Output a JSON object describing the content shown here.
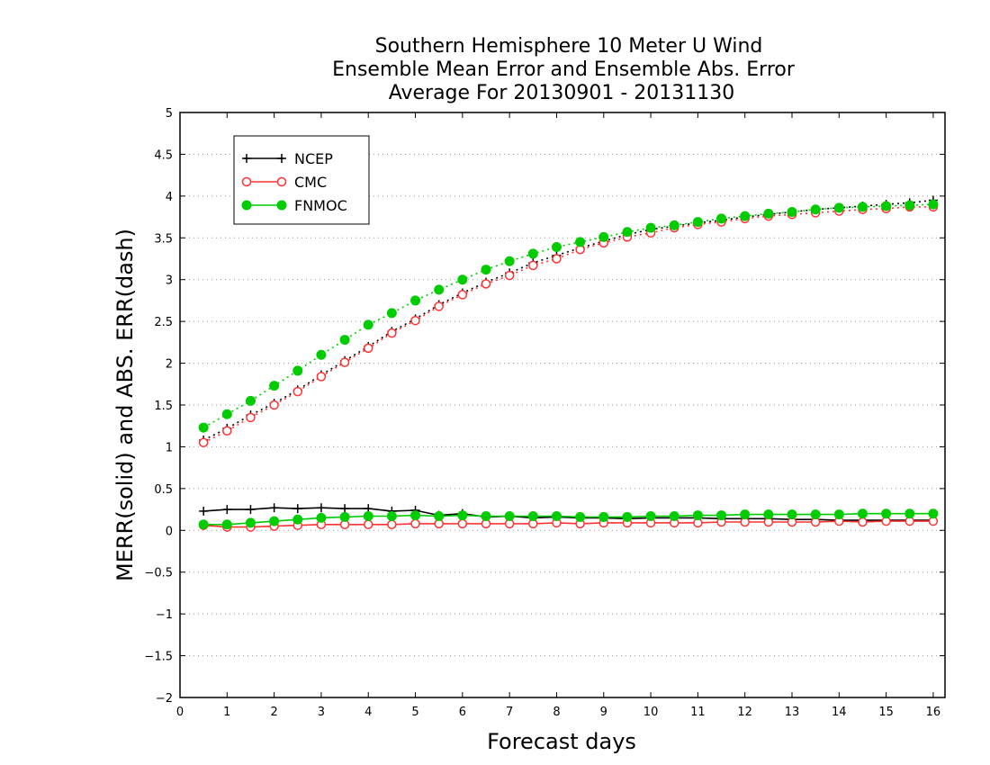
{
  "chart_data": {
    "type": "line",
    "title_lines": [
      "Southern Hemisphere 10 Meter U Wind",
      "Ensemble Mean Error and Ensemble Abs. Error",
      "Average For 20130901 - 20131130"
    ],
    "xlabel": "Forecast days",
    "ylabel": "MERR(solid) and ABS. ERR(dash)",
    "xlim": [
      0,
      16.25
    ],
    "ylim": [
      -2,
      5
    ],
    "xticks": [
      0,
      1,
      2,
      3,
      4,
      5,
      6,
      7,
      8,
      9,
      10,
      11,
      12,
      13,
      14,
      15,
      16
    ],
    "yticks": [
      -2,
      -1.5,
      -1,
      -0.5,
      0,
      0.5,
      1,
      1.5,
      2,
      2.5,
      3,
      3.5,
      4,
      4.5,
      5
    ],
    "grid": "horizontal dotted",
    "legend_position": "top-left",
    "x": [
      0.5,
      1,
      1.5,
      2,
      2.5,
      3,
      3.5,
      4,
      4.5,
      5,
      5.5,
      6,
      6.5,
      7,
      7.5,
      8,
      8.5,
      9,
      9.5,
      10,
      10.5,
      11,
      11.5,
      12,
      12.5,
      13,
      13.5,
      14,
      14.5,
      15,
      15.5,
      16
    ],
    "series": [
      {
        "name": "NCEP",
        "color": "#000000",
        "marker": "plus",
        "merr": [
          0.23,
          0.25,
          0.25,
          0.27,
          0.26,
          0.27,
          0.26,
          0.26,
          0.23,
          0.24,
          0.18,
          0.2,
          0.16,
          0.17,
          0.15,
          0.16,
          0.15,
          0.15,
          0.14,
          0.15,
          0.15,
          0.15,
          0.14,
          0.14,
          0.14,
          0.13,
          0.13,
          0.12,
          0.12,
          0.12,
          0.12,
          0.12
        ],
        "abs": [
          1.08,
          1.22,
          1.38,
          1.52,
          1.68,
          1.86,
          2.03,
          2.2,
          2.38,
          2.53,
          2.7,
          2.84,
          2.97,
          3.08,
          3.2,
          3.29,
          3.38,
          3.46,
          3.54,
          3.6,
          3.64,
          3.68,
          3.71,
          3.75,
          3.78,
          3.81,
          3.84,
          3.86,
          3.88,
          3.9,
          3.92,
          3.95
        ]
      },
      {
        "name": "CMC",
        "color": "#ff3333",
        "marker": "open-circle",
        "merr": [
          0.06,
          0.04,
          0.04,
          0.05,
          0.06,
          0.07,
          0.07,
          0.07,
          0.07,
          0.08,
          0.08,
          0.08,
          0.08,
          0.08,
          0.08,
          0.09,
          0.08,
          0.09,
          0.09,
          0.09,
          0.09,
          0.09,
          0.1,
          0.1,
          0.1,
          0.1,
          0.1,
          0.11,
          0.1,
          0.11,
          0.11,
          0.11
        ],
        "abs": [
          1.05,
          1.19,
          1.35,
          1.5,
          1.66,
          1.84,
          2.01,
          2.18,
          2.36,
          2.51,
          2.68,
          2.82,
          2.95,
          3.05,
          3.17,
          3.25,
          3.36,
          3.44,
          3.51,
          3.56,
          3.62,
          3.66,
          3.69,
          3.73,
          3.76,
          3.78,
          3.8,
          3.82,
          3.84,
          3.85,
          3.87,
          3.87
        ]
      },
      {
        "name": "FNMOC",
        "color": "#00cc00",
        "marker": "filled-circle",
        "merr": [
          0.07,
          0.07,
          0.09,
          0.11,
          0.13,
          0.15,
          0.16,
          0.17,
          0.17,
          0.18,
          0.17,
          0.18,
          0.17,
          0.17,
          0.17,
          0.17,
          0.16,
          0.16,
          0.16,
          0.17,
          0.17,
          0.18,
          0.18,
          0.19,
          0.19,
          0.19,
          0.19,
          0.19,
          0.2,
          0.2,
          0.2,
          0.2
        ],
        "abs": [
          1.23,
          1.39,
          1.55,
          1.73,
          1.91,
          2.1,
          2.28,
          2.46,
          2.6,
          2.75,
          2.88,
          3.0,
          3.12,
          3.22,
          3.31,
          3.39,
          3.45,
          3.51,
          3.57,
          3.62,
          3.65,
          3.69,
          3.73,
          3.76,
          3.79,
          3.81,
          3.84,
          3.86,
          3.87,
          3.88,
          3.89,
          3.9
        ]
      }
    ]
  }
}
